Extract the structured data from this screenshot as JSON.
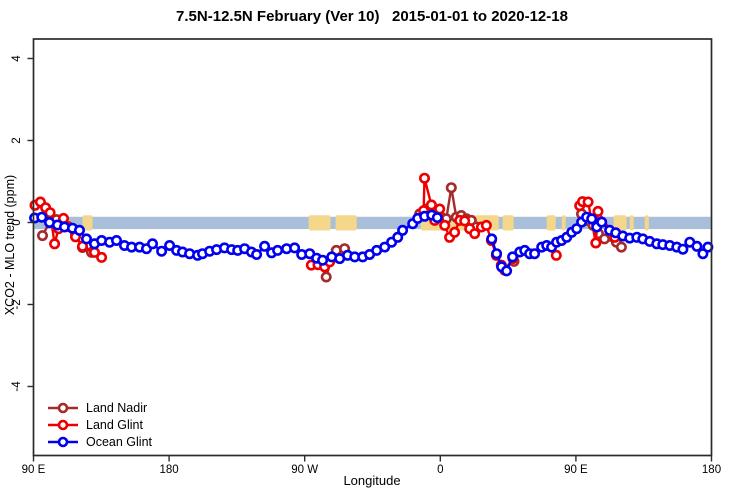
{
  "title": "7.5N-12.5N February (Ver 10)   2015-01-01 to 2020-12-18",
  "chart_data": {
    "type": "scatter",
    "title": "7.5N-12.5N February (Ver 10)   2015-01-01 to 2020-12-18",
    "xlabel": "Longitude",
    "ylabel": "XCO2 - MLO trend (ppm)",
    "x_unit": "degrees, unwrapped eastward from 90E (90E..180..90W..0..90E..180)",
    "x_domain": [
      90,
      540
    ],
    "ylim": [
      -5,
      4.5
    ],
    "grid": false,
    "legend_position": "bottom-left",
    "x_ticks": [
      {
        "pos": 90,
        "label": "90 E"
      },
      {
        "pos": 180,
        "label": "180"
      },
      {
        "pos": 270,
        "label": "90 W"
      },
      {
        "pos": 360,
        "label": "0"
      },
      {
        "pos": 450,
        "label": "90 E"
      },
      {
        "pos": 540,
        "label": "180"
      }
    ],
    "y_ticks": [
      {
        "pos": 4,
        "label": "4"
      },
      {
        "pos": 2,
        "label": "2"
      },
      {
        "pos": 0,
        "label": "0"
      },
      {
        "pos": -2,
        "label": "-2"
      },
      {
        "pos": -4,
        "label": "-4"
      }
    ],
    "zero_band": {
      "ymin": -0.16,
      "ymax": 0.14,
      "color": "#A9BED9"
    },
    "land_color": "#F5D78B",
    "land_patches_deg": [
      [
        122.5,
        129.2
      ],
      [
        272.6,
        287.2
      ],
      [
        290.5,
        304.5
      ],
      [
        347.0,
        398.8
      ],
      [
        401.4,
        408.7
      ],
      [
        430.6,
        436.6
      ],
      [
        440.6,
        443.2
      ],
      [
        475.1,
        483.7
      ],
      [
        485.7,
        488.4
      ],
      [
        495.7,
        498.4
      ]
    ],
    "series": [
      {
        "name": "Land Nadir",
        "color": "#A52A2A",
        "segments": [
          [
            [
              96.0,
              -0.32
            ],
            [
              100.6,
              0.0
            ],
            [
              105.3,
              0.07
            ],
            [
              111.2,
              -0.1
            ],
            [
              117.9,
              -0.27
            ],
            [
              122.5,
              -0.61
            ],
            [
              128.5,
              -0.73
            ]
          ],
          [
            [
              279.9,
              -0.96
            ],
            [
              284.3,
              -1.33
            ],
            [
              287.7,
              -0.88
            ],
            [
              291.0,
              -0.68
            ],
            [
              296.5,
              -0.64
            ]
          ],
          [
            [
              346.3,
              0.21
            ],
            [
              350.8,
              0.33
            ],
            [
              357.4,
              0.25
            ],
            [
              360.7,
              0.13
            ],
            [
              364.0,
              0.09
            ],
            [
              367.3,
              0.85
            ],
            [
              370.6,
              0.13
            ],
            [
              373.9,
              0.17
            ],
            [
              377.3,
              0.09
            ],
            [
              380.6,
              0.05
            ],
            [
              383.9,
              -0.11
            ]
          ],
          [
            [
              408.9,
              -0.95
            ]
          ],
          [
            [
              453.7,
              0.21
            ],
            [
              457.0,
              0.05
            ],
            [
              461.4,
              -0.07
            ],
            [
              465.0,
              -0.27
            ],
            [
              469.0,
              -0.4
            ],
            [
              476.9,
              -0.48
            ],
            [
              480.2,
              -0.6
            ]
          ]
        ]
      },
      {
        "name": "Land Glint",
        "color": "#EE0000",
        "segments": [
          [
            [
              91.0,
              0.42
            ],
            [
              94.6,
              0.5
            ],
            [
              98.0,
              0.36
            ],
            [
              101.0,
              0.24
            ],
            [
              104.0,
              -0.52
            ],
            [
              106.6,
              -0.15
            ],
            [
              109.9,
              0.1
            ],
            [
              113.0,
              -0.1
            ],
            [
              117.9,
              -0.35
            ],
            [
              122.5,
              -0.58
            ],
            [
              130.5,
              -0.73
            ],
            [
              135.2,
              -0.85
            ]
          ],
          [
            [
              274.4,
              -1.04
            ],
            [
              278.8,
              -1.03
            ],
            [
              283.2,
              -1.08
            ],
            [
              286.6,
              -0.96
            ]
          ],
          [
            [
              348.9,
              0.29
            ],
            [
              349.5,
              1.08
            ],
            [
              354.1,
              0.43
            ],
            [
              356.3,
              0.05
            ],
            [
              359.6,
              0.33
            ],
            [
              362.9,
              -0.07
            ],
            [
              366.2,
              -0.36
            ],
            [
              369.5,
              -0.24
            ],
            [
              372.9,
              0.05
            ],
            [
              376.2,
              0.04
            ],
            [
              379.5,
              -0.15
            ],
            [
              382.8,
              -0.27
            ],
            [
              387.3,
              -0.11
            ],
            [
              390.6,
              -0.07
            ],
            [
              393.9,
              -0.44
            ],
            [
              397.2,
              -0.8
            ],
            [
              400.5,
              -1.04
            ],
            [
              402.7,
              -1.16
            ],
            [
              408.2,
              -0.88
            ]
          ],
          [
            [
              437.0,
              -0.8
            ]
          ],
          [
            [
              452.5,
              0.41
            ],
            [
              454.4,
              0.51
            ],
            [
              458.1,
              0.5
            ],
            [
              463.2,
              -0.5
            ],
            [
              464.7,
              0.27
            ],
            [
              475.8,
              -0.36
            ]
          ]
        ]
      },
      {
        "name": "Ocean Glint",
        "color": "#0000EE",
        "segments": [
          [
            [
              90.7,
              0.11
            ],
            [
              95.5,
              0.13
            ],
            [
              100.6,
              0.0
            ],
            [
              105.9,
              -0.06
            ],
            [
              110.6,
              -0.11
            ],
            [
              115.9,
              -0.14
            ],
            [
              120.5,
              -0.19
            ],
            [
              125.2,
              -0.4
            ],
            [
              130.5,
              -0.52
            ],
            [
              135.2,
              -0.44
            ],
            [
              140.5,
              -0.48
            ],
            [
              145.1,
              -0.44
            ],
            [
              150.4,
              -0.56
            ],
            [
              155.1,
              -0.6
            ],
            [
              160.4,
              -0.6
            ],
            [
              165.0,
              -0.64
            ],
            [
              169.0,
              -0.52
            ],
            [
              175.0,
              -0.7
            ],
            [
              180.3,
              -0.56
            ],
            [
              185.0,
              -0.68
            ],
            [
              188.9,
              -0.72
            ],
            [
              193.6,
              -0.76
            ],
            [
              198.9,
              -0.8
            ],
            [
              202.2,
              -0.76
            ],
            [
              206.9,
              -0.7
            ],
            [
              211.5,
              -0.66
            ],
            [
              216.8,
              -0.62
            ],
            [
              221.5,
              -0.66
            ],
            [
              225.5,
              -0.68
            ],
            [
              230.1,
              -0.64
            ],
            [
              234.7,
              -0.72
            ],
            [
              238.1,
              -0.78
            ],
            [
              243.4,
              -0.58
            ],
            [
              248.0,
              -0.74
            ],
            [
              252.0,
              -0.68
            ],
            [
              258.0,
              -0.64
            ],
            [
              263.3,
              -0.62
            ],
            [
              268.0,
              -0.78
            ],
            [
              273.3,
              -0.76
            ],
            [
              277.9,
              -0.87
            ],
            [
              281.9,
              -0.92
            ],
            [
              287.9,
              -0.84
            ],
            [
              293.2,
              -0.88
            ],
            [
              298.5,
              -0.8
            ],
            [
              303.2,
              -0.84
            ],
            [
              308.5,
              -0.84
            ],
            [
              313.1,
              -0.78
            ],
            [
              317.8,
              -0.68
            ],
            [
              323.1,
              -0.6
            ],
            [
              327.7,
              -0.48
            ],
            [
              331.7,
              -0.36
            ],
            [
              335.0,
              -0.19
            ],
            [
              341.7,
              -0.03
            ],
            [
              345.0,
              0.1
            ],
            [
              349.6,
              0.15
            ],
            [
              354.3,
              0.18
            ],
            [
              358.0,
              0.12
            ]
          ],
          [
            [
              394.1,
              -0.4
            ],
            [
              397.4,
              -0.76
            ],
            [
              400.7,
              -1.08
            ],
            [
              404.0,
              -1.18
            ],
            [
              408.0,
              -0.84
            ],
            [
              412.7,
              -0.72
            ],
            [
              416.0,
              -0.68
            ],
            [
              419.3,
              -0.76
            ],
            [
              422.6,
              -0.76
            ],
            [
              427.3,
              -0.6
            ],
            [
              430.6,
              -0.56
            ],
            [
              433.9,
              -0.6
            ],
            [
              437.2,
              -0.48
            ],
            [
              440.5,
              -0.44
            ],
            [
              443.9,
              -0.36
            ],
            [
              447.2,
              -0.24
            ],
            [
              450.5,
              -0.15
            ],
            [
              453.8,
              0.01
            ],
            [
              457.1,
              0.13
            ],
            [
              460.5,
              0.09
            ],
            [
              463.8,
              -0.11
            ],
            [
              467.1,
              0.01
            ],
            [
              472.4,
              -0.19
            ],
            [
              476.4,
              -0.25
            ],
            [
              481.1,
              -0.33
            ],
            [
              485.7,
              -0.38
            ],
            [
              490.4,
              -0.36
            ],
            [
              494.4,
              -0.4
            ],
            [
              499.0,
              -0.46
            ],
            [
              503.7,
              -0.52
            ],
            [
              507.7,
              -0.54
            ],
            [
              512.3,
              -0.56
            ],
            [
              517.0,
              -0.6
            ],
            [
              521.0,
              -0.65
            ],
            [
              525.6,
              -0.48
            ],
            [
              530.3,
              -0.58
            ],
            [
              534.3,
              -0.76
            ],
            [
              537.6,
              -0.6
            ]
          ]
        ]
      }
    ]
  }
}
